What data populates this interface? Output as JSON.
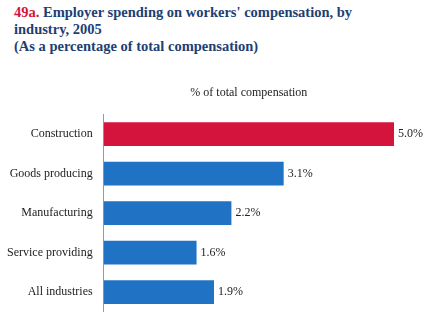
{
  "chart_data": {
    "type": "bar",
    "orientation": "horizontal",
    "title": "49a. Employer spending on workers' compensation, by industry, 2005",
    "subtitle": "(As a percentage of total compensation)",
    "xlabel": "% of total compensation",
    "categories": [
      "Construction",
      "Goods producing",
      "Manufacturing",
      "Service providing",
      "All industries"
    ],
    "values": [
      5.0,
      3.1,
      2.2,
      1.6,
      1.9
    ],
    "value_labels": [
      "5.0%",
      "3.1%",
      "2.2%",
      "1.6%",
      "1.9%"
    ],
    "colors": [
      "#d4143c",
      "#1f72c4",
      "#1f72c4",
      "#1f72c4",
      "#1f72c4"
    ],
    "xlim": [
      0,
      5
    ],
    "grid": false,
    "data_labels": true,
    "tick_labels": "y"
  }
}
